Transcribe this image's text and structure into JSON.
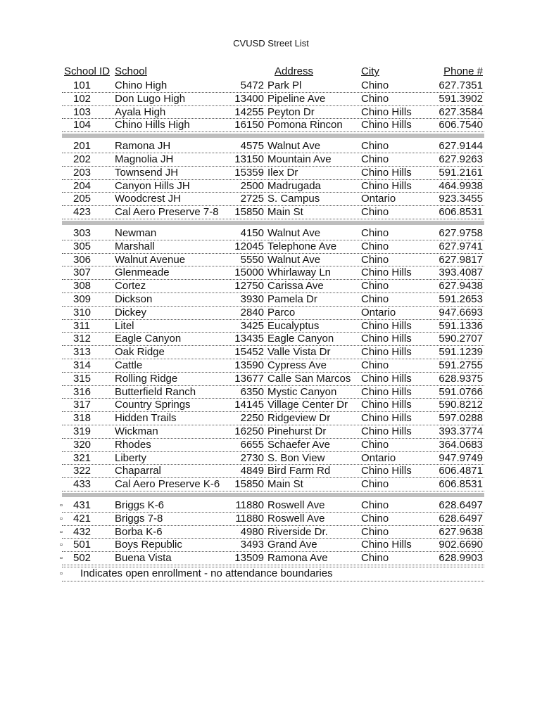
{
  "title": "CVUSD Street List",
  "headers": {
    "id": "School ID",
    "school": "School",
    "address": "Address",
    "city": "City",
    "phone": "Phone #"
  },
  "open_enrollment_marker": "▫",
  "sections": [
    [
      [
        "101",
        "Chino High",
        "5472",
        "Park Pl",
        "Chino",
        "627.7351",
        false
      ],
      [
        "102",
        "Don Lugo High",
        "13400",
        "Pipeline Ave",
        "Chino",
        "591.3902",
        false
      ],
      [
        "103",
        "Ayala High",
        "14255",
        "Peyton Dr",
        "Chino Hills",
        "627.3584",
        false
      ],
      [
        "104",
        "Chino Hills High",
        "16150",
        "Pomona Rincon",
        "Chino Hills",
        "606.7540",
        false
      ]
    ],
    [
      [
        "201",
        "Ramona JH",
        "4575",
        "Walnut Ave",
        "Chino",
        "627.9144",
        false
      ],
      [
        "202",
        "Magnolia JH",
        "13150",
        "Mountain Ave",
        "Chino",
        "627.9263",
        false
      ],
      [
        "203",
        "Townsend JH",
        "15359",
        "Ilex Dr",
        "Chino Hills",
        "591.2161",
        false
      ],
      [
        "204",
        "Canyon Hills JH",
        "2500",
        "Madrugada",
        "Chino Hills",
        "464.9938",
        false
      ],
      [
        "205",
        "Woodcrest JH",
        "2725",
        "S. Campus",
        "Ontario",
        "923.3455",
        false
      ],
      [
        "423",
        "Cal Aero Preserve 7-8",
        "15850",
        "Main St",
        "Chino",
        "606.8531",
        false
      ]
    ],
    [
      [
        "303",
        "Newman",
        "4150",
        "Walnut Ave",
        "Chino",
        "627.9758",
        false
      ],
      [
        "305",
        "Marshall",
        "12045",
        "Telephone Ave",
        "Chino",
        "627.9741",
        false
      ],
      [
        "306",
        "Walnut Avenue",
        "5550",
        "Walnut Ave",
        "Chino",
        "627.9817",
        false
      ],
      [
        "307",
        "Glenmeade",
        "15000",
        "Whirlaway Ln",
        "Chino Hills",
        "393.4087",
        false
      ],
      [
        "308",
        "Cortez",
        "12750",
        "Carissa Ave",
        "Chino",
        "627.9438",
        false
      ],
      [
        "309",
        "Dickson",
        "3930",
        "Pamela Dr",
        "Chino",
        "591.2653",
        false
      ],
      [
        "310",
        "Dickey",
        "2840",
        "Parco",
        "Ontario",
        "947.6693",
        false
      ],
      [
        "311",
        "Litel",
        "3425",
        "Eucalyptus",
        "Chino Hills",
        "591.1336",
        false
      ],
      [
        "312",
        "Eagle Canyon",
        "13435",
        "Eagle Canyon",
        "Chino Hills",
        "590.2707",
        false
      ],
      [
        "313",
        "Oak Ridge",
        "15452",
        "Valle Vista Dr",
        "Chino Hills",
        "591.1239",
        false
      ],
      [
        "314",
        "Cattle",
        "13590",
        "Cypress Ave",
        "Chino",
        "591.2755",
        false
      ],
      [
        "315",
        "Rolling Ridge",
        "13677",
        "Calle San Marcos",
        "Chino Hills",
        "628.9375",
        false
      ],
      [
        "316",
        "Butterfield Ranch",
        "6350",
        "Mystic Canyon",
        "Chino Hills",
        "591.0766",
        false
      ],
      [
        "317",
        "Country Springs",
        "14145",
        "Village Center Dr",
        "Chino Hills",
        "590.8212",
        false
      ],
      [
        "318",
        "Hidden Trails",
        "2250",
        "Ridgeview Dr",
        "Chino Hills",
        "597.0288",
        false
      ],
      [
        "319",
        "Wickman",
        "16250",
        "Pinehurst Dr",
        "Chino Hills",
        "393.3774",
        false
      ],
      [
        "320",
        "Rhodes",
        "6655",
        "Schaefer Ave",
        "Chino",
        "364.0683",
        false
      ],
      [
        "321",
        "Liberty",
        "2730",
        "S. Bon View",
        "Ontario",
        "947.9749",
        false
      ],
      [
        "322",
        "Chaparral",
        "4849",
        "Bird Farm Rd",
        "Chino Hills",
        "606.4871",
        false
      ],
      [
        "433",
        "Cal Aero Preserve K-6",
        "15850",
        "Main St",
        "Chino",
        "606.8531",
        false
      ]
    ],
    [
      [
        "431",
        "Briggs K-6",
        "11880",
        "Roswell Ave",
        "Chino",
        "628.6497",
        true
      ],
      [
        "421",
        "Briggs 7-8",
        "11880",
        "Roswell Ave",
        "Chino",
        "628.6497",
        true
      ],
      [
        "432",
        "Borba K-6",
        "4980",
        "Riverside Dr.",
        "Chino",
        "627.9638",
        true
      ],
      [
        "501",
        "Boys Republic",
        "3493",
        "Grand Ave",
        "Chino Hills",
        "902.6690",
        true
      ],
      [
        "502",
        "Buena Vista",
        "13509",
        "Ramona Ave",
        "Chino",
        "628.9903",
        true
      ]
    ]
  ],
  "footnote": "Indicates open enrollment - no attendance boundaries"
}
